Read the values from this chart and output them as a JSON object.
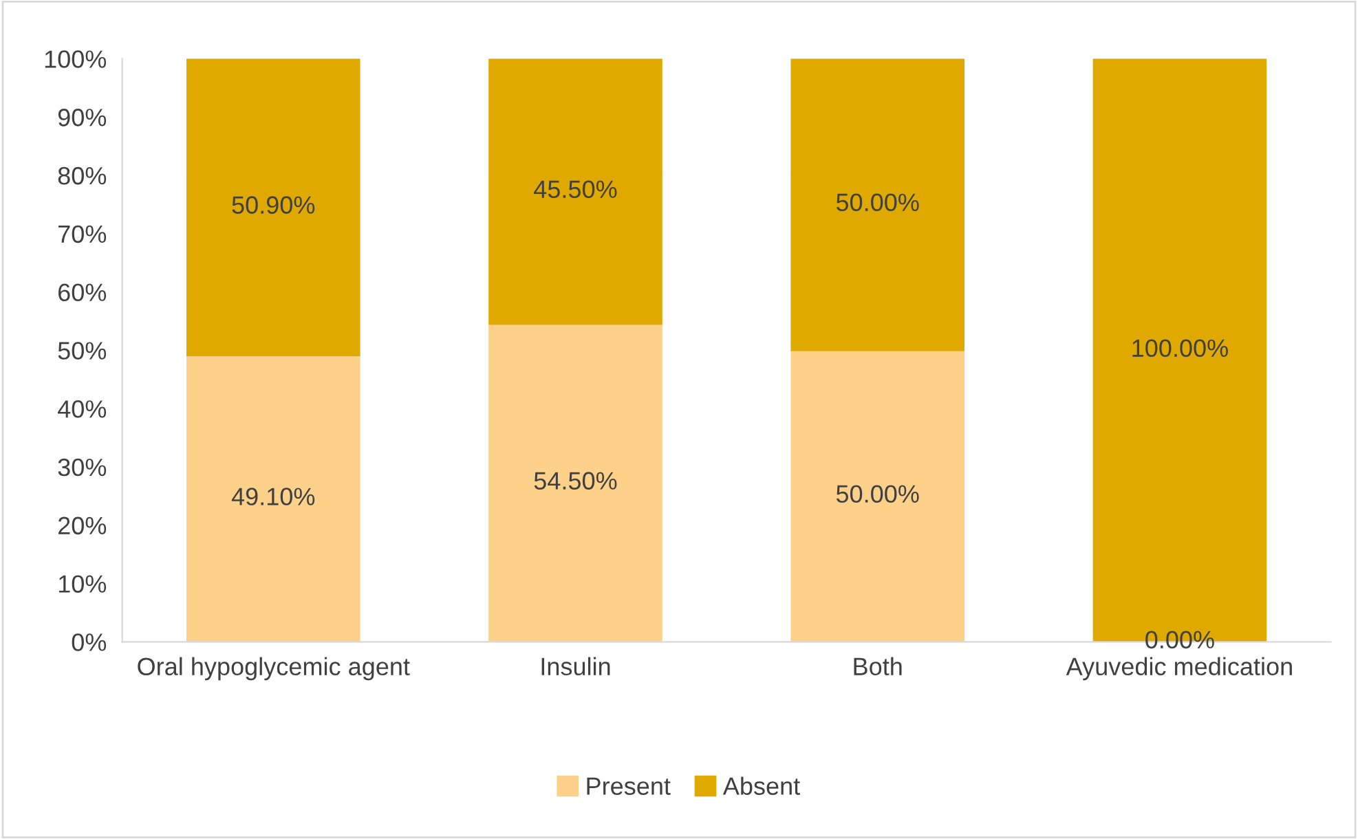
{
  "chart_data": {
    "type": "bar",
    "stacked": true,
    "categories": [
      "Oral hypoglycemic agent",
      "Insulin",
      "Both",
      "Ayuvedic medication"
    ],
    "series": [
      {
        "name": "Present",
        "color": "#fdd189",
        "values": [
          49.1,
          54.5,
          50.0,
          0.0
        ],
        "value_labels": [
          "49.10%",
          "54.50%",
          "50.00%",
          "0.00%"
        ]
      },
      {
        "name": "Absent",
        "color": "#e0a900",
        "values": [
          50.9,
          45.5,
          50.0,
          100.0
        ],
        "value_labels": [
          "50.90%",
          "45.50%",
          "50.00%",
          "100.00%"
        ]
      }
    ],
    "ylim": [
      0,
      100
    ],
    "yticks": [
      {
        "value": 0,
        "label": "0%"
      },
      {
        "value": 10,
        "label": "10%"
      },
      {
        "value": 20,
        "label": "20%"
      },
      {
        "value": 30,
        "label": "30%"
      },
      {
        "value": 40,
        "label": "40%"
      },
      {
        "value": 50,
        "label": "50%"
      },
      {
        "value": 60,
        "label": "60%"
      },
      {
        "value": 70,
        "label": "70%"
      },
      {
        "value": 80,
        "label": "80%"
      },
      {
        "value": 90,
        "label": "90%"
      },
      {
        "value": 100,
        "label": "100%"
      }
    ],
    "legend": "bottom",
    "grid": false
  }
}
